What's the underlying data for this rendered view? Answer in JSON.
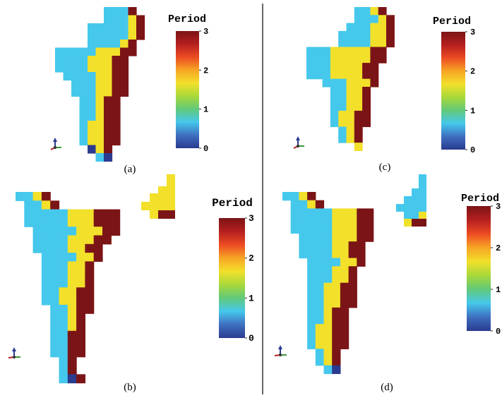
{
  "colors": {
    "period0": "#2a3b8f",
    "period1": "#45c8ec",
    "period2": "#f2e02b",
    "period3": "#7b1416",
    "divider": "#333333"
  },
  "colorbar": {
    "title": "Period",
    "ticks": [
      "0",
      "1",
      "2",
      "3"
    ],
    "range": [
      0,
      3
    ],
    "stops": [
      "#2a3b8f",
      "#3f6fc0",
      "#45c8ec",
      "#62c97a",
      "#a8d83a",
      "#f2e02b",
      "#f7a524",
      "#ec4b23",
      "#b51f1f",
      "#7b1416"
    ]
  },
  "panels": [
    {
      "id": "a",
      "label": "(a)",
      "bands": [
        [
          3,
          3,
          2,
          1,
          1,
          1,
          1
        ],
        [
          3,
          3,
          2,
          2,
          1,
          1,
          1
        ],
        [
          3,
          3,
          3,
          2,
          2,
          1,
          1
        ],
        [
          3,
          3,
          3,
          3,
          2,
          2,
          1
        ]
      ]
    },
    {
      "id": "b",
      "label": "(b)",
      "bands": [
        [
          3,
          3,
          2,
          2,
          1,
          1,
          1
        ],
        [
          3,
          3,
          2,
          2,
          1,
          1,
          1
        ],
        [
          3,
          3,
          3,
          2,
          2,
          1,
          1
        ],
        [
          3,
          3,
          3,
          3,
          2,
          1,
          1
        ]
      ]
    },
    {
      "id": "c",
      "label": "(c)",
      "bands": [
        [
          3,
          3,
          2,
          2,
          1,
          1,
          1
        ],
        [
          3,
          3,
          2,
          2,
          2,
          1,
          1
        ],
        [
          3,
          3,
          2,
          2,
          2,
          1,
          1
        ],
        [
          3,
          3,
          3,
          2,
          2,
          2,
          1
        ]
      ]
    },
    {
      "id": "d",
      "label": "(d)",
      "bands": [
        [
          3,
          3,
          2,
          2,
          1,
          1,
          1
        ],
        [
          3,
          3,
          2,
          2,
          1,
          1,
          1
        ],
        [
          3,
          3,
          3,
          2,
          2,
          1,
          1
        ],
        [
          3,
          3,
          3,
          2,
          2,
          2,
          1
        ]
      ]
    }
  ]
}
